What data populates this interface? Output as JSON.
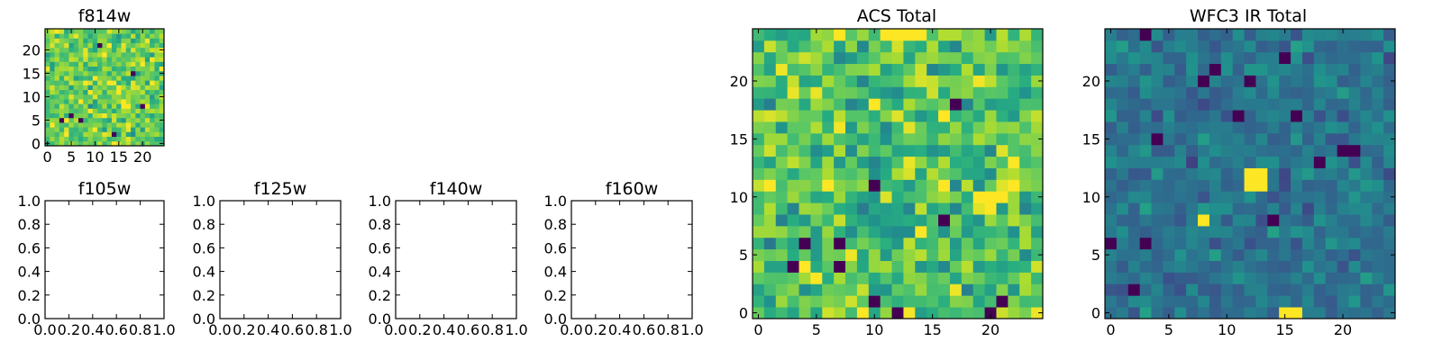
{
  "chart_data": [
    {
      "type": "heatmap",
      "title": "f814w",
      "colormap": "viridis",
      "grid_size": 25,
      "xlim": [
        -0.5,
        24.5
      ],
      "ylim": [
        -0.5,
        24.5
      ],
      "xticks": [
        0,
        5,
        10,
        15,
        20
      ],
      "yticks": [
        0,
        5,
        10,
        15,
        20
      ],
      "xtick_labels": [
        "0",
        "5",
        "10",
        "15",
        "20"
      ],
      "ytick_labels": [
        "0",
        "5",
        "10",
        "15",
        "20"
      ],
      "value_range": [
        0,
        1
      ],
      "seed": 814,
      "mean": 0.78,
      "spread": 0.14,
      "dark_pixels": [
        [
          3,
          5
        ],
        [
          5,
          6
        ],
        [
          7,
          5
        ],
        [
          18,
          15
        ],
        [
          20,
          8
        ],
        [
          11,
          21
        ],
        [
          14,
          2
        ]
      ],
      "bright_pixels": [
        [
          16,
          8
        ],
        [
          17,
          8
        ],
        [
          16,
          9
        ],
        [
          22,
          18
        ],
        [
          9,
          11
        ]
      ]
    },
    {
      "type": "empty",
      "title": "f105w",
      "xlim": [
        0,
        1
      ],
      "ylim": [
        0,
        1
      ],
      "xtick_labels": [
        "0.0",
        "0.2",
        "0.4",
        "0.6",
        "0.8",
        "1.0"
      ],
      "ytick_labels": [
        "0.0",
        "0.2",
        "0.4",
        "0.6",
        "0.8",
        "1.0"
      ]
    },
    {
      "type": "empty",
      "title": "f125w",
      "xlim": [
        0,
        1
      ],
      "ylim": [
        0,
        1
      ],
      "xtick_labels": [
        "0.0",
        "0.2",
        "0.4",
        "0.6",
        "0.8",
        "1.0"
      ],
      "ytick_labels": [
        "0.0",
        "0.2",
        "0.4",
        "0.6",
        "0.8",
        "1.0"
      ]
    },
    {
      "type": "empty",
      "title": "f140w",
      "xlim": [
        0,
        1
      ],
      "ylim": [
        0,
        1
      ],
      "xtick_labels": [
        "0.0",
        "0.2",
        "0.4",
        "0.6",
        "0.8",
        "1.0"
      ],
      "ytick_labels": [
        "0.0",
        "0.2",
        "0.4",
        "0.6",
        "0.8",
        "1.0"
      ]
    },
    {
      "type": "empty",
      "title": "f160w",
      "xlim": [
        0,
        1
      ],
      "ylim": [
        0,
        1
      ],
      "xtick_labels": [
        "0.0",
        "0.2",
        "0.4",
        "0.6",
        "0.8",
        "1.0"
      ],
      "ytick_labels": [
        "0.0",
        "0.2",
        "0.4",
        "0.6",
        "0.8",
        "1.0"
      ]
    },
    {
      "type": "heatmap",
      "title": "ACS Total",
      "colormap": "viridis",
      "grid_size": 25,
      "xlim": [
        -0.5,
        24.5
      ],
      "ylim": [
        -0.5,
        24.5
      ],
      "xticks": [
        0,
        5,
        10,
        15,
        20
      ],
      "yticks": [
        0,
        5,
        10,
        15,
        20
      ],
      "xtick_labels": [
        "0",
        "5",
        "10",
        "15",
        "20"
      ],
      "ytick_labels": [
        "0",
        "5",
        "10",
        "15",
        "20"
      ],
      "value_range": [
        0,
        1
      ],
      "seed": 1234,
      "mean": 0.72,
      "spread": 0.16,
      "dark_pixels": [
        [
          12,
          0
        ],
        [
          9,
          0
        ],
        [
          17,
          18
        ],
        [
          10,
          1
        ],
        [
          7,
          4
        ],
        [
          7,
          6
        ],
        [
          4,
          6
        ],
        [
          3,
          4
        ],
        [
          20,
          0
        ],
        [
          21,
          1
        ],
        [
          10,
          11
        ],
        [
          16,
          8
        ]
      ],
      "bright_pixels": [
        [
          11,
          24
        ],
        [
          12,
          24
        ],
        [
          13,
          24
        ],
        [
          14,
          24
        ],
        [
          7,
          24
        ],
        [
          19,
          10
        ],
        [
          20,
          10
        ],
        [
          21,
          10
        ],
        [
          20,
          9
        ],
        [
          4,
          4
        ],
        [
          9,
          0
        ],
        [
          14,
          7
        ]
      ]
    },
    {
      "type": "heatmap",
      "title": "WFC3 IR Total",
      "colormap": "viridis",
      "grid_size": 25,
      "xlim": [
        -0.5,
        24.5
      ],
      "ylim": [
        -0.5,
        24.5
      ],
      "xticks": [
        0,
        5,
        10,
        15,
        20
      ],
      "yticks": [
        0,
        5,
        10,
        15,
        20
      ],
      "xtick_labels": [
        "0",
        "5",
        "10",
        "15",
        "20"
      ],
      "ytick_labels": [
        "0",
        "5",
        "10",
        "15",
        "20"
      ],
      "value_range": [
        0,
        1
      ],
      "seed": 3160,
      "mean": 0.4,
      "spread": 0.09,
      "dark_pixels": [
        [
          3,
          24
        ],
        [
          9,
          21
        ],
        [
          8,
          20
        ],
        [
          12,
          20
        ],
        [
          15,
          22
        ],
        [
          4,
          15
        ],
        [
          16,
          17
        ],
        [
          20,
          14
        ],
        [
          21,
          14
        ],
        [
          14,
          8
        ],
        [
          3,
          6
        ],
        [
          2,
          2
        ],
        [
          0,
          6
        ],
        [
          11,
          17
        ],
        [
          18,
          13
        ]
      ],
      "bright_pixels": [
        [
          12,
          12
        ],
        [
          13,
          12
        ],
        [
          12,
          11
        ],
        [
          13,
          11
        ],
        [
          8,
          8
        ],
        [
          15,
          0
        ],
        [
          16,
          0
        ]
      ]
    }
  ]
}
